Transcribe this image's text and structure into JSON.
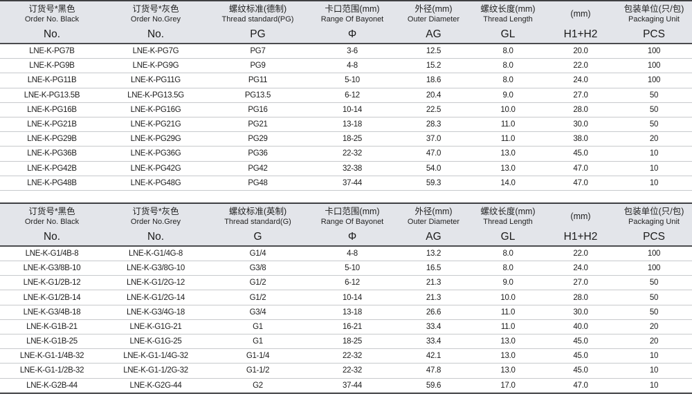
{
  "colors": {
    "header_background": "#e3e5ea",
    "heavy_border": "#3e3f42",
    "light_border": "#c7c9cc",
    "text": "#1c1c1c"
  },
  "tables": [
    {
      "name": "pg-thread-spec-table",
      "headers": [
        {
          "cn": "订货号*黑色",
          "en": "Order No. Black",
          "code": "No."
        },
        {
          "cn": "订货号*灰色",
          "en": "Order No.Grey",
          "code": "No."
        },
        {
          "cn": "螺纹标准(德制)",
          "en": "Thread standard(PG)",
          "code": "PG"
        },
        {
          "cn": "卡口范围(mm)",
          "en": "Range Of Bayonet",
          "code": "Φ"
        },
        {
          "cn": "外径(mm)",
          "en": "Outer Diameter",
          "code": "AG"
        },
        {
          "cn": "螺纹长度(mm)",
          "en": "Thread Length",
          "code": "GL"
        },
        {
          "cn": "(mm)",
          "en": "",
          "code": "H1+H2"
        },
        {
          "cn": "包装单位(只/包)",
          "en": "Packaging Unit",
          "code": "PCS"
        }
      ],
      "rows": [
        [
          "LNE-K-PG7B",
          "LNE-K-PG7G",
          "PG7",
          "3-6",
          "12.5",
          "8.0",
          "20.0",
          "100"
        ],
        [
          "LNE-K-PG9B",
          "LNE-K-PG9G",
          "PG9",
          "4-8",
          "15.2",
          "8.0",
          "22.0",
          "100"
        ],
        [
          "LNE-K-PG11B",
          "LNE-K-PG11G",
          "PG11",
          "5-10",
          "18.6",
          "8.0",
          "24.0",
          "100"
        ],
        [
          "LNE-K-PG13.5B",
          "LNE-K-PG13.5G",
          "PG13.5",
          "6-12",
          "20.4",
          "9.0",
          "27.0",
          "50"
        ],
        [
          "LNE-K-PG16B",
          "LNE-K-PG16G",
          "PG16",
          "10-14",
          "22.5",
          "10.0",
          "28.0",
          "50"
        ],
        [
          "LNE-K-PG21B",
          "LNE-K-PG21G",
          "PG21",
          "13-18",
          "28.3",
          "11.0",
          "30.0",
          "50"
        ],
        [
          "LNE-K-PG29B",
          "LNE-K-PG29G",
          "PG29",
          "18-25",
          "37.0",
          "11.0",
          "38.0",
          "20"
        ],
        [
          "LNE-K-PG36B",
          "LNE-K-PG36G",
          "PG36",
          "22-32",
          "47.0",
          "13.0",
          "45.0",
          "10"
        ],
        [
          "LNE-K-PG42B",
          "LNE-K-PG42G",
          "PG42",
          "32-38",
          "54.0",
          "13.0",
          "47.0",
          "10"
        ],
        [
          "LNE-K-PG48B",
          "LNE-K-PG48G",
          "PG48",
          "37-44",
          "59.3",
          "14.0",
          "47.0",
          "10"
        ]
      ]
    },
    {
      "name": "g-thread-spec-table",
      "headers": [
        {
          "cn": "订货号*黑色",
          "en": "Order No. Black",
          "code": "No."
        },
        {
          "cn": "订货号*灰色",
          "en": "Order No.Grey",
          "code": "No."
        },
        {
          "cn": "螺纹标准(英制)",
          "en": "Thread standard(G)",
          "code": "G"
        },
        {
          "cn": "卡口范围(mm)",
          "en": "Range Of Bayonet",
          "code": "Φ"
        },
        {
          "cn": "外径(mm)",
          "en": "Outer Diameter",
          "code": "AG"
        },
        {
          "cn": "螺纹长度(mm)",
          "en": "Thread Length",
          "code": "GL"
        },
        {
          "cn": "(mm)",
          "en": "",
          "code": "H1+H2"
        },
        {
          "cn": "包装单位(只/包)",
          "en": "Packaging Unit",
          "code": "PCS"
        }
      ],
      "rows": [
        [
          "LNE-K-G1/4B-8",
          "LNE-K-G1/4G-8",
          "G1/4",
          "4-8",
          "13.2",
          "8.0",
          "22.0",
          "100"
        ],
        [
          "LNE-K-G3/8B-10",
          "LNE-K-G3/8G-10",
          "G3/8",
          "5-10",
          "16.5",
          "8.0",
          "24.0",
          "100"
        ],
        [
          "LNE-K-G1/2B-12",
          "LNE-K-G1/2G-12",
          "G1/2",
          "6-12",
          "21.3",
          "9.0",
          "27.0",
          "50"
        ],
        [
          "LNE-K-G1/2B-14",
          "LNE-K-G1/2G-14",
          "G1/2",
          "10-14",
          "21.3",
          "10.0",
          "28.0",
          "50"
        ],
        [
          "LNE-K-G3/4B-18",
          "LNE-K-G3/4G-18",
          "G3/4",
          "13-18",
          "26.6",
          "11.0",
          "30.0",
          "50"
        ],
        [
          "LNE-K-G1B-21",
          "LNE-K-G1G-21",
          "G1",
          "16-21",
          "33.4",
          "11.0",
          "40.0",
          "20"
        ],
        [
          "LNE-K-G1B-25",
          "LNE-K-G1G-25",
          "G1",
          "18-25",
          "33.4",
          "13.0",
          "45.0",
          "20"
        ],
        [
          "LNE-K-G1-1/4B-32",
          "LNE-K-G1-1/4G-32",
          "G1-1/4",
          "22-32",
          "42.1",
          "13.0",
          "45.0",
          "10"
        ],
        [
          "LNE-K-G1-1/2B-32",
          "LNE-K-G1-1/2G-32",
          "G1-1/2",
          "22-32",
          "47.8",
          "13.0",
          "45.0",
          "10"
        ],
        [
          "LNE-K-G2B-44",
          "LNE-K-G2G-44",
          "G2",
          "37-44",
          "59.6",
          "17.0",
          "47.0",
          "10"
        ]
      ]
    }
  ]
}
